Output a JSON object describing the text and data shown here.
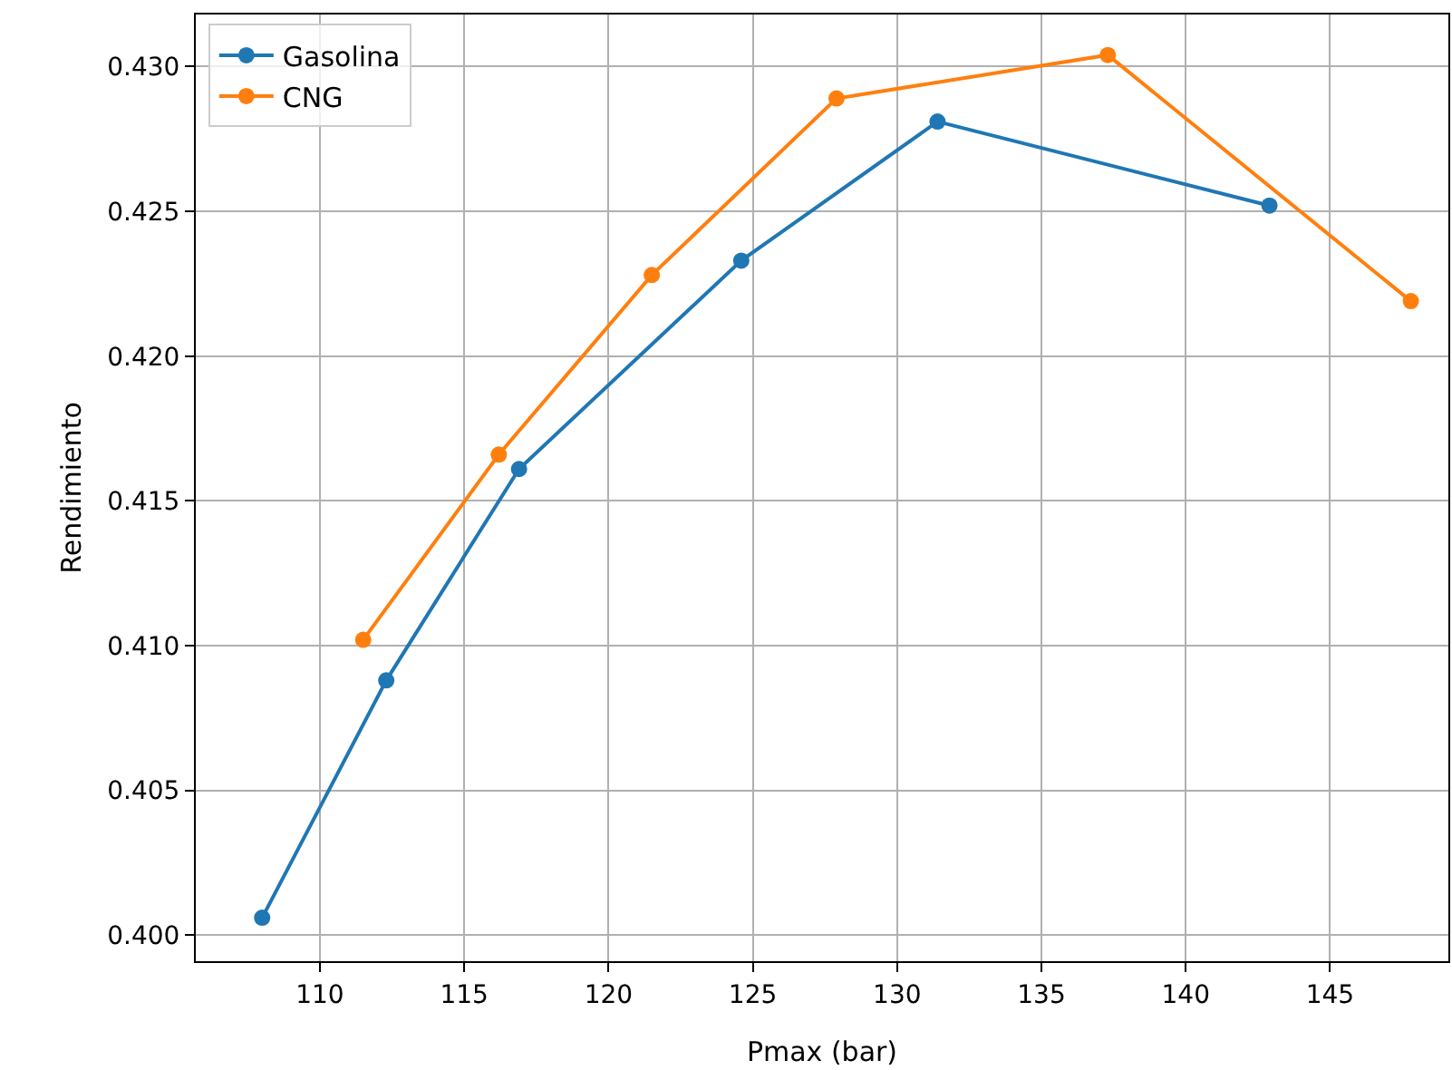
{
  "chart_data": {
    "type": "line",
    "xlabel": "Pmax (bar)",
    "ylabel": "Rendimiento",
    "series": [
      {
        "name": "Gasolina",
        "color": "#1f77b4",
        "x": [
          108.0,
          112.3,
          116.9,
          124.6,
          131.4,
          142.9
        ],
        "values": [
          0.4006,
          0.4088,
          0.4161,
          0.4233,
          0.4281,
          0.4252
        ]
      },
      {
        "name": "CNG",
        "color": "#ff7f0e",
        "x": [
          111.5,
          116.2,
          121.5,
          127.9,
          137.3,
          147.8
        ],
        "values": [
          0.4102,
          0.4166,
          0.4228,
          0.4289,
          0.4304,
          0.4219
        ]
      }
    ],
    "xlim": [
      105.7,
      149.1
    ],
    "ylim": [
      0.3991,
      0.4318
    ],
    "xticks": [
      110,
      115,
      120,
      125,
      130,
      135,
      140,
      145
    ],
    "yticks": [
      {
        "value": 0.4,
        "label": "0.400"
      },
      {
        "value": 0.405,
        "label": "0.405"
      },
      {
        "value": 0.41,
        "label": "0.410"
      },
      {
        "value": 0.415,
        "label": "0.415"
      },
      {
        "value": 0.42,
        "label": "0.420"
      },
      {
        "value": 0.425,
        "label": "0.425"
      },
      {
        "value": 0.43,
        "label": "0.430"
      }
    ],
    "grid": true,
    "legend": "top left",
    "marker": "circle",
    "line_style": "solid"
  }
}
